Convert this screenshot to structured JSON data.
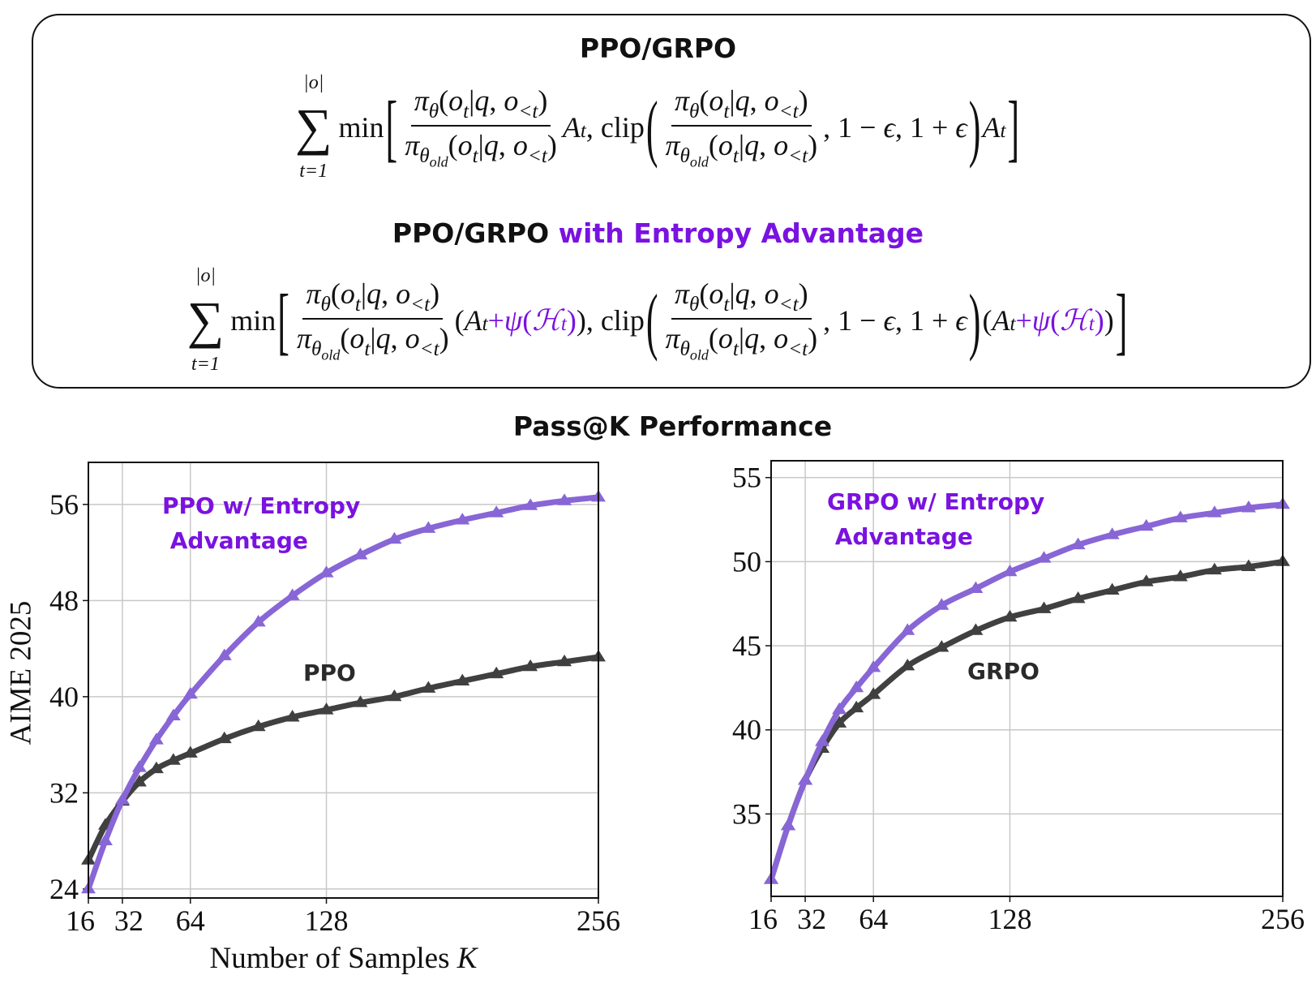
{
  "box": {
    "title1": "PPO/GRPO",
    "title2_a": "PPO/GRPO",
    "title2_b": "with Entropy Advantage",
    "formula1": [
      {
        "type": "sum",
        "top": "|o|",
        "bottom": "t=1"
      },
      {
        "type": "text",
        "tokens": [
          [
            "min",
            ""
          ]
        ]
      },
      {
        "type": "bracket",
        "char": "["
      },
      {
        "type": "frac",
        "num": [
          [
            "π",
            "it"
          ],
          [
            "θ",
            "sub"
          ],
          [
            "(",
            ""
          ],
          [
            "o",
            "it"
          ],
          [
            "t",
            "sub"
          ],
          [
            "|",
            ""
          ],
          [
            "q",
            "it"
          ],
          [
            ", ",
            ""
          ],
          [
            "o",
            "it"
          ],
          [
            "<t",
            "sub"
          ],
          [
            ")",
            ""
          ]
        ],
        "den": [
          [
            "π",
            "it"
          ],
          [
            "θ",
            "sub"
          ],
          [
            "old",
            "subsub"
          ],
          [
            "(",
            ""
          ],
          [
            "o",
            "it"
          ],
          [
            "t",
            "sub"
          ],
          [
            "|",
            ""
          ],
          [
            "q",
            "it"
          ],
          [
            ", ",
            ""
          ],
          [
            "o",
            "it"
          ],
          [
            "<t",
            "sub"
          ],
          [
            ")",
            ""
          ]
        ]
      },
      {
        "type": "text",
        "tokens": [
          [
            "A",
            "it"
          ],
          [
            "t",
            "sub"
          ],
          [
            ", clip",
            ""
          ]
        ]
      },
      {
        "type": "bracket",
        "char": "("
      },
      {
        "type": "frac",
        "num": [
          [
            "π",
            "it"
          ],
          [
            "θ",
            "sub"
          ],
          [
            "(",
            ""
          ],
          [
            "o",
            "it"
          ],
          [
            "t",
            "sub"
          ],
          [
            "|",
            ""
          ],
          [
            "q",
            "it"
          ],
          [
            ", ",
            ""
          ],
          [
            "o",
            "it"
          ],
          [
            "<t",
            "sub"
          ],
          [
            ")",
            ""
          ]
        ],
        "den": [
          [
            "π",
            "it"
          ],
          [
            "θ",
            "sub"
          ],
          [
            "old",
            "subsub"
          ],
          [
            "(",
            ""
          ],
          [
            "o",
            "it"
          ],
          [
            "t",
            "sub"
          ],
          [
            "|",
            ""
          ],
          [
            "q",
            "it"
          ],
          [
            ", ",
            ""
          ],
          [
            "o",
            "it"
          ],
          [
            "<t",
            "sub"
          ],
          [
            ")",
            ""
          ]
        ]
      },
      {
        "type": "text",
        "tokens": [
          [
            ", 1 − ",
            ""
          ],
          [
            "ϵ",
            "it"
          ],
          [
            ", 1 + ",
            ""
          ],
          [
            "ϵ",
            "it"
          ]
        ]
      },
      {
        "type": "bracket",
        "char": ")"
      },
      {
        "type": "text",
        "tokens": [
          [
            "A",
            "it"
          ],
          [
            "t",
            "sub"
          ]
        ]
      },
      {
        "type": "bracket",
        "char": "]"
      }
    ],
    "formula2": [
      {
        "type": "sum",
        "top": "|o|",
        "bottom": "t=1"
      },
      {
        "type": "text",
        "tokens": [
          [
            "min",
            ""
          ]
        ]
      },
      {
        "type": "bracket",
        "char": "["
      },
      {
        "type": "frac",
        "num": [
          [
            "π",
            "it"
          ],
          [
            "θ",
            "sub"
          ],
          [
            "(",
            ""
          ],
          [
            "o",
            "it"
          ],
          [
            "t",
            "sub"
          ],
          [
            "|",
            ""
          ],
          [
            "q",
            "it"
          ],
          [
            ", ",
            ""
          ],
          [
            "o",
            "it"
          ],
          [
            "<t",
            "sub"
          ],
          [
            ")",
            ""
          ]
        ],
        "den": [
          [
            "π",
            "it"
          ],
          [
            "θ",
            "sub"
          ],
          [
            "old",
            "subsub"
          ],
          [
            "(",
            ""
          ],
          [
            "o",
            "it"
          ],
          [
            "t",
            "sub"
          ],
          [
            "|",
            ""
          ],
          [
            "q",
            "it"
          ],
          [
            ", ",
            ""
          ],
          [
            "o",
            "it"
          ],
          [
            "<t",
            "sub"
          ],
          [
            ")",
            ""
          ]
        ]
      },
      {
        "type": "text",
        "tokens": [
          [
            "(",
            ""
          ],
          [
            "A",
            "it"
          ],
          [
            "t",
            "sub"
          ],
          [
            "+",
            "",
            " purple"
          ],
          [
            "ψ",
            "it purple"
          ],
          [
            "(",
            "purple"
          ],
          [
            "ℋ",
            "it purple"
          ],
          [
            "t",
            "sub purple"
          ],
          [
            ")",
            "purple"
          ],
          [
            "), clip",
            ""
          ]
        ]
      },
      {
        "type": "bracket",
        "char": "("
      },
      {
        "type": "frac",
        "num": [
          [
            "π",
            "it"
          ],
          [
            "θ",
            "sub"
          ],
          [
            "(",
            ""
          ],
          [
            "o",
            "it"
          ],
          [
            "t",
            "sub"
          ],
          [
            "|",
            ""
          ],
          [
            "q",
            "it"
          ],
          [
            ", ",
            ""
          ],
          [
            "o",
            "it"
          ],
          [
            "<t",
            "sub"
          ],
          [
            ")",
            ""
          ]
        ],
        "den": [
          [
            "π",
            "it"
          ],
          [
            "θ",
            "sub"
          ],
          [
            "old",
            "subsub"
          ],
          [
            "(",
            ""
          ],
          [
            "o",
            "it"
          ],
          [
            "t",
            "sub"
          ],
          [
            "|",
            ""
          ],
          [
            "q",
            "it"
          ],
          [
            ", ",
            ""
          ],
          [
            "o",
            "it"
          ],
          [
            "<t",
            "sub"
          ],
          [
            ")",
            ""
          ]
        ]
      },
      {
        "type": "text",
        "tokens": [
          [
            ", 1 − ",
            ""
          ],
          [
            "ϵ",
            "it"
          ],
          [
            ", 1 + ",
            ""
          ],
          [
            "ϵ",
            "it"
          ]
        ]
      },
      {
        "type": "bracket",
        "char": ")"
      },
      {
        "type": "text",
        "tokens": [
          [
            "(",
            ""
          ],
          [
            "A",
            "it"
          ],
          [
            "t",
            "sub"
          ],
          [
            "+",
            "purple"
          ],
          [
            "ψ",
            "it purple"
          ],
          [
            "(",
            "purple"
          ],
          [
            "ℋ",
            "it purple"
          ],
          [
            "t",
            "sub purple"
          ],
          [
            ")",
            "purple"
          ],
          [
            ")",
            ""
          ]
        ]
      },
      {
        "type": "bracket",
        "char": "]"
      }
    ]
  },
  "figure_title": "Pass@K Performance",
  "colors": {
    "entropy": "#8866d6",
    "baseline": "#404040",
    "entropy_label": "#7a12e0",
    "baseline_label": "#2a2a2a",
    "grid": "#c8c8c8"
  },
  "chart_data": [
    {
      "type": "line",
      "xlabel": "Number of Samples K",
      "ylabel": "AIME 2025",
      "xlim": [
        16,
        256
      ],
      "ylim": [
        23.25,
        59.5
      ],
      "xticks": [
        16,
        32,
        64,
        128,
        256
      ],
      "xtick_labels": [
        "16",
        "32",
        "64",
        "128",
        "256"
      ],
      "yticks": [
        24,
        32,
        40,
        48,
        56
      ],
      "ytick_labels": [
        "24",
        "32",
        "40",
        "48",
        "56"
      ],
      "grid": true,
      "marker": "triangle",
      "x": [
        16,
        24,
        32,
        40,
        48,
        56,
        64,
        80,
        96,
        112,
        128,
        144,
        160,
        176,
        192,
        208,
        224,
        240,
        256
      ],
      "series": [
        {
          "name": "PPO w/ Entropy\n Advantage",
          "color_key": "entropy",
          "values": [
            24.0,
            28.0,
            31.4,
            34.1,
            36.4,
            38.4,
            40.2,
            43.4,
            46.2,
            48.4,
            50.3,
            51.8,
            53.1,
            54.0,
            54.7,
            55.3,
            55.9,
            56.3,
            56.6
          ]
        },
        {
          "name": "PPO",
          "color_key": "baseline",
          "values": [
            26.4,
            29.3,
            31.3,
            32.9,
            34.0,
            34.7,
            35.3,
            36.5,
            37.5,
            38.3,
            38.9,
            39.5,
            40.0,
            40.7,
            41.3,
            41.9,
            42.5,
            42.9,
            43.3
          ]
        }
      ]
    },
    {
      "type": "line",
      "xlabel": "",
      "ylabel": "",
      "xlim": [
        16,
        256
      ],
      "ylim": [
        30.1,
        56.0
      ],
      "xticks": [
        16,
        32,
        64,
        128,
        256
      ],
      "xtick_labels": [
        "16",
        "32",
        "64",
        "128",
        "256"
      ],
      "yticks": [
        35,
        40,
        45,
        50,
        55
      ],
      "ytick_labels": [
        "35",
        "40",
        "45",
        "50",
        "55"
      ],
      "grid": true,
      "marker": "triangle",
      "x": [
        16,
        24,
        32,
        40,
        48,
        56,
        64,
        80,
        96,
        112,
        128,
        144,
        160,
        176,
        192,
        208,
        224,
        240,
        256
      ],
      "series": [
        {
          "name": "GRPO w/ Entropy\n Advantage",
          "color_key": "entropy",
          "values": [
            31.1,
            34.3,
            37.0,
            39.3,
            41.2,
            42.5,
            43.7,
            45.9,
            47.4,
            48.4,
            49.4,
            50.2,
            51.0,
            51.6,
            52.1,
            52.6,
            52.9,
            53.2,
            53.4
          ]
        },
        {
          "name": "GRPO",
          "color_key": "baseline",
          "values": [
            31.1,
            34.3,
            37.0,
            38.9,
            40.4,
            41.3,
            42.1,
            43.8,
            44.9,
            45.9,
            46.7,
            47.2,
            47.8,
            48.3,
            48.8,
            49.1,
            49.5,
            49.7,
            50.0
          ]
        }
      ]
    }
  ]
}
